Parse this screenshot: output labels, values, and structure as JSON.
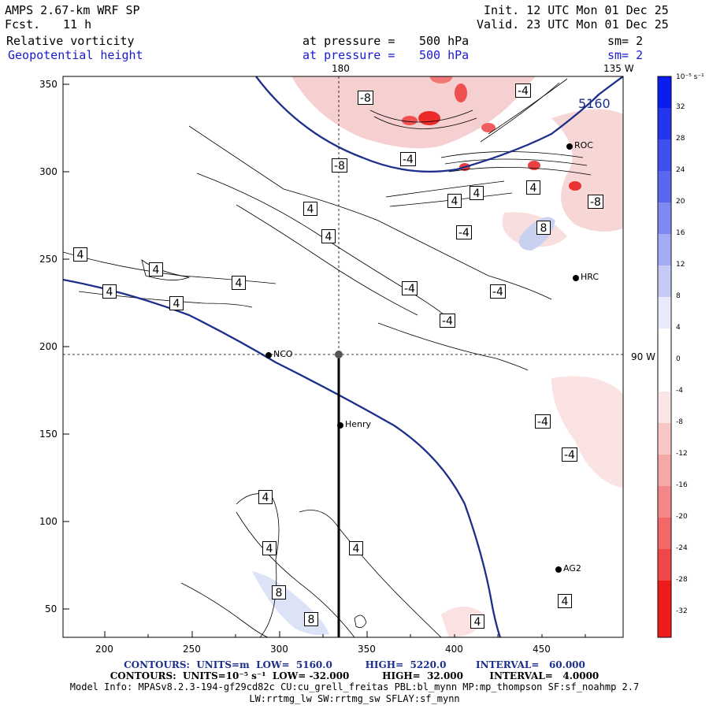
{
  "header": {
    "model": "AMPS 2.67-km WRF SP",
    "fcst_label": "Fcst.",
    "fcst_value": "11 h",
    "init": "Init. 12 UTC Mon 01 Dec 25",
    "valid": "Valid. 23 UTC Mon 01 Dec 25",
    "field1": "Relative vorticity",
    "field2": "Geopotential height",
    "pressure_label": "at pressure =",
    "pressure1": "500 hPa",
    "pressure2": "500 hPa",
    "sm1": "sm= 2",
    "sm2": "sm= 2"
  },
  "map": {
    "top_labels": [
      "180",
      "135 W"
    ],
    "right_label": "90 W",
    "x_ticks": [
      "200",
      "250",
      "300",
      "350",
      "400",
      "450"
    ],
    "y_ticks": [
      "350",
      "300",
      "250",
      "200",
      "150",
      "100",
      "50"
    ],
    "stations": [
      "ROC",
      "HRC",
      "NCO",
      "Henry",
      "AG2"
    ],
    "height_contour_label": "5160",
    "contour_labels": [
      "-8",
      "-4",
      "-4",
      "-8",
      "-4",
      "-8",
      "4",
      "4",
      "4",
      "4",
      "-4",
      "8",
      "4",
      "4",
      "4",
      "4",
      "4",
      "4",
      "-4",
      "-4",
      "4",
      "4",
      "4",
      "8",
      "8",
      "-4",
      "-4",
      "4",
      "4"
    ]
  },
  "colorbar": {
    "unit": "10⁻⁵ s⁻¹",
    "labels": [
      "32",
      "28",
      "24",
      "20",
      "16",
      "12",
      "8",
      "4",
      "0",
      "-4",
      "-8",
      "-12",
      "-16",
      "-20",
      "-24",
      "-28",
      "-32"
    ]
  },
  "footer": {
    "line1": "CONTOURS:  UNITS=m  LOW=  5160.0          HIGH=  5220.0         INTERVAL=   60.000",
    "line2": "CONTOURS:  UNITS=10⁻⁵ s⁻¹  LOW= -32.000          HIGH=  32.000        INTERVAL=   4.0000",
    "line3": "Model Info: MPASv8.2.3-194-gf29cd82c CU:cu_grell_freitas PBL:bl_mynn MP:mp_thompson SF:sf_noahmp 2.7",
    "line4": "LW:rrtmg_lw SW:rrtmg_sw SFLAY:sf_mynn"
  }
}
